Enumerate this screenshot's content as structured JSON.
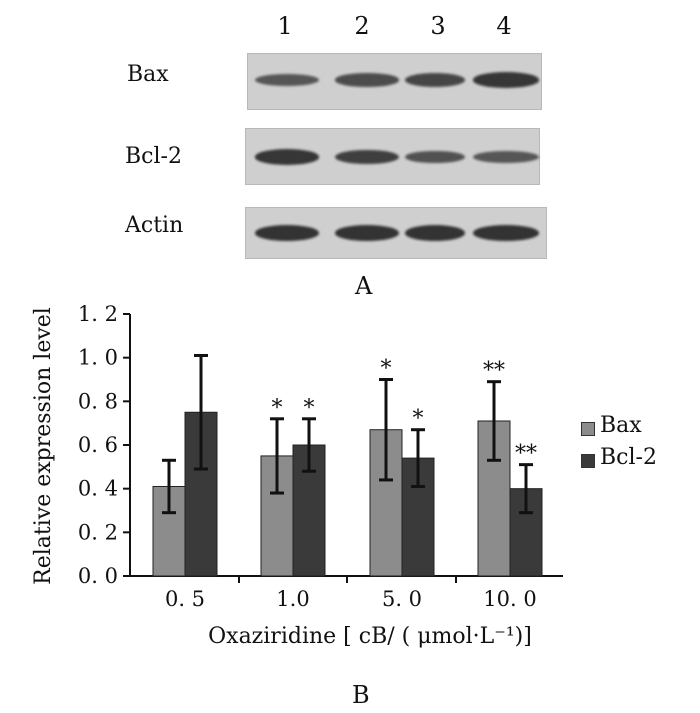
{
  "panel_a": {
    "lanes": [
      "1",
      "2",
      "3",
      "4"
    ],
    "proteins": [
      {
        "name": "Bax",
        "intensity": [
          0.55,
          0.65,
          0.72,
          0.9
        ]
      },
      {
        "name": "Bcl-2",
        "intensity": [
          0.9,
          0.8,
          0.6,
          0.55
        ]
      },
      {
        "name": "Actin",
        "intensity": [
          0.95,
          0.95,
          0.95,
          0.95
        ]
      }
    ],
    "label": "A"
  },
  "panel_b_label": "B",
  "chart_data": {
    "type": "bar",
    "categories": [
      "0. 5",
      "1.0",
      "5. 0",
      "10. 0"
    ],
    "series": [
      {
        "name": "Bax",
        "color": "#8c8c8c",
        "values": [
          0.41,
          0.55,
          0.67,
          0.71
        ],
        "errors": [
          0.12,
          0.17,
          0.23,
          0.18
        ],
        "significance": [
          "",
          "*",
          "*",
          "**"
        ]
      },
      {
        "name": "Bcl-2",
        "color": "#3a3a3a",
        "values": [
          0.75,
          0.6,
          0.54,
          0.4
        ],
        "errors": [
          0.26,
          0.12,
          0.13,
          0.11
        ],
        "significance": [
          "",
          "*",
          "*",
          "**"
        ]
      }
    ],
    "yticks": [
      "0. 0",
      "0. 2",
      "0. 4",
      "0. 6",
      "0. 8",
      "1. 0",
      "1. 2"
    ],
    "ylim": [
      0,
      1.2
    ],
    "ylabel": "Relative expression level",
    "xlabel": "Oxaziridine [ cB/ ( μmol·L⁻¹)]",
    "legend_position": "right"
  }
}
